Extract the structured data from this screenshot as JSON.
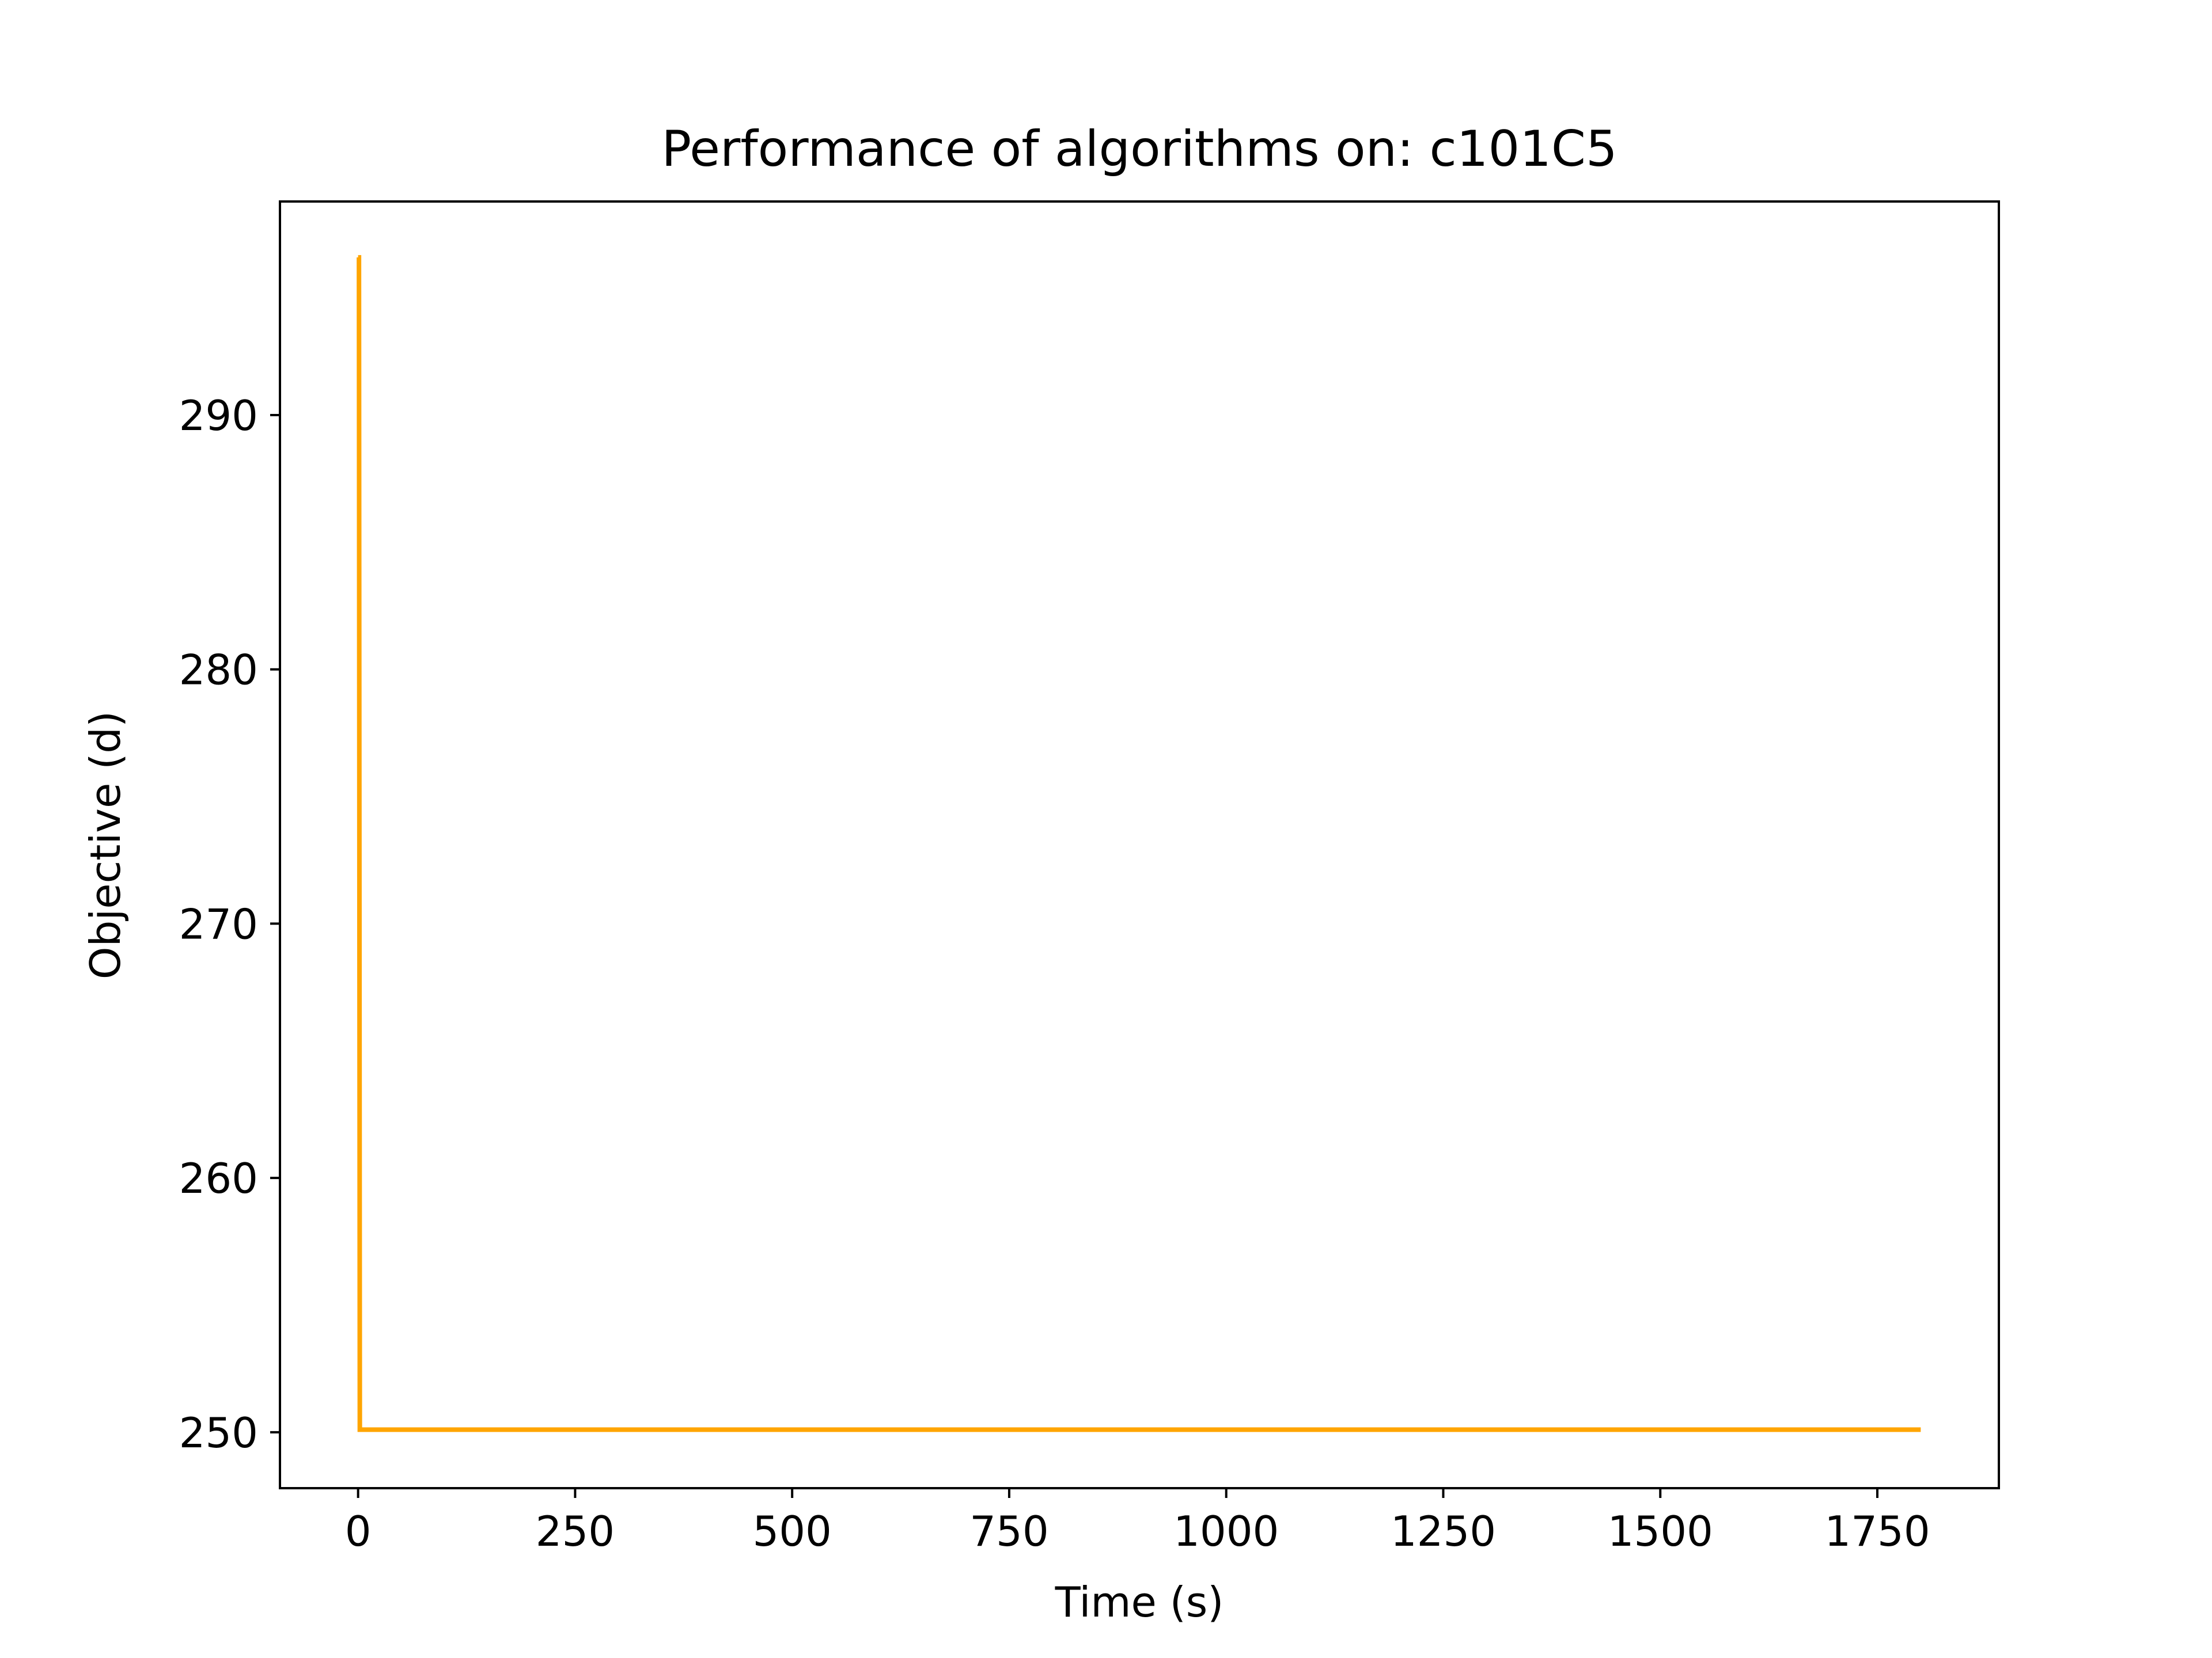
{
  "chart_data": {
    "type": "line",
    "title": "Performance of algorithms on: c101C5",
    "xlabel": "Time (s)",
    "ylabel": "Objective (d)",
    "xlim": [
      -90,
      1890
    ],
    "ylim": [
      247.8,
      298.4
    ],
    "xticks": [
      0,
      250,
      500,
      750,
      1000,
      1250,
      1500,
      1750
    ],
    "xtick_labels": [
      "0",
      "250",
      "500",
      "750",
      "1000",
      "1250",
      "1500",
      "1750"
    ],
    "yticks": [
      250,
      260,
      270,
      280,
      290
    ],
    "ytick_labels": [
      "250",
      "260",
      "270",
      "280",
      "290"
    ],
    "grid": false,
    "legend": "none",
    "series": [
      {
        "color": "#ffa500",
        "x": [
          0,
          1,
          2,
          1800
        ],
        "y": [
          296.2,
          296.2,
          250.1,
          250.1
        ]
      }
    ]
  }
}
